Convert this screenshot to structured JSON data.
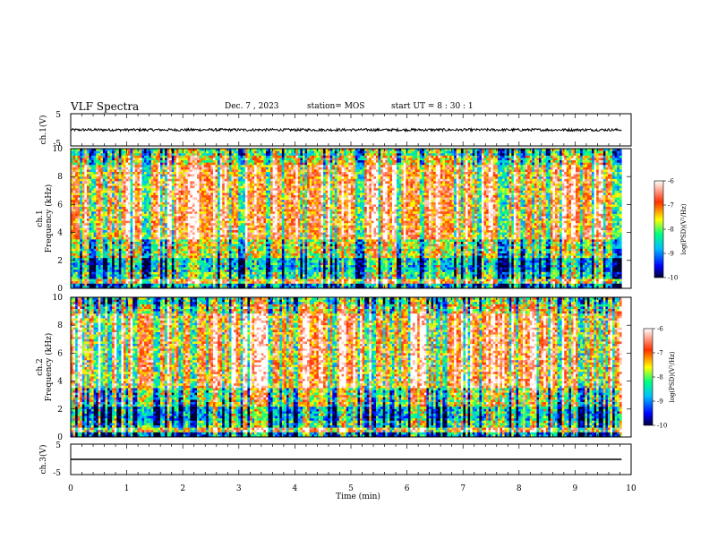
{
  "header": {
    "title": "VLF Spectra",
    "date": "Dec. 7 , 2023",
    "station": "station= MOS",
    "start": "start  UT =  8 : 30 : 1"
  },
  "panels": {
    "ch1_waveform": {
      "ylabel": "ch.1(V)",
      "yticks": [
        "5",
        "-5"
      ]
    },
    "ch1_spectrogram": {
      "ylabel_top": "ch.1",
      "ylabel": "Frequency (kHz)",
      "yticks": [
        "0",
        "2",
        "4",
        "6",
        "8",
        "10"
      ]
    },
    "ch2_spectrogram": {
      "ylabel_top": "ch.2",
      "ylabel": "Frequency (kHz)",
      "yticks": [
        "0",
        "2",
        "4",
        "6",
        "8",
        "10"
      ]
    },
    "ch3_waveform": {
      "ylabel": "ch.3(V)",
      "yticks": [
        "5",
        "-5"
      ]
    }
  },
  "colorbar": {
    "label": "log(PSD)(V²/Hz)",
    "ticks": [
      "-6",
      "-7",
      "-8",
      "-9",
      "-10"
    ],
    "range": [
      -10,
      -6
    ],
    "colors": [
      "#000033",
      "#0000ff",
      "#00bfff",
      "#00ff80",
      "#ffff00",
      "#ff3000",
      "#ffffff"
    ]
  },
  "xaxis": {
    "label": "Time (min)",
    "ticks": [
      "0",
      "1",
      "2",
      "3",
      "4",
      "5",
      "6",
      "7",
      "8",
      "9",
      "10"
    ]
  },
  "chart_data": [
    {
      "type": "line",
      "title": "",
      "ylabel": "ch.1(V)",
      "xlabel": "",
      "xlim": [
        0,
        10
      ],
      "ylim": [
        -5,
        5
      ],
      "series": [
        {
          "x_range": [
            0,
            9.83
          ],
          "mean": 0,
          "amplitude": 0.4,
          "note_visual": "noisy flat trace near 0 V"
        }
      ]
    },
    {
      "type": "heatmap",
      "ylabel": "Frequency (kHz)",
      "xlim": [
        0,
        10
      ],
      "ylim": [
        0,
        10
      ],
      "x_extent": [
        0,
        9.83
      ],
      "zlim": [
        -10,
        -6
      ],
      "zlabel": "log(PSD)(V²/Hz)"
    },
    {
      "type": "heatmap",
      "ylabel": "Frequency (kHz)",
      "xlim": [
        0,
        10
      ],
      "ylim": [
        0,
        10
      ],
      "x_extent": [
        0,
        9.83
      ],
      "zlim": [
        -10,
        -6
      ],
      "zlabel": "log(PSD)(V²/Hz)"
    },
    {
      "type": "line",
      "ylabel": "ch.3(V)",
      "xlabel": "Time (min)",
      "xlim": [
        0,
        10
      ],
      "ylim": [
        -5,
        5
      ],
      "series": [
        {
          "x_range": [
            0,
            9.83
          ],
          "mean": 0,
          "amplitude": 0
        }
      ]
    }
  ]
}
